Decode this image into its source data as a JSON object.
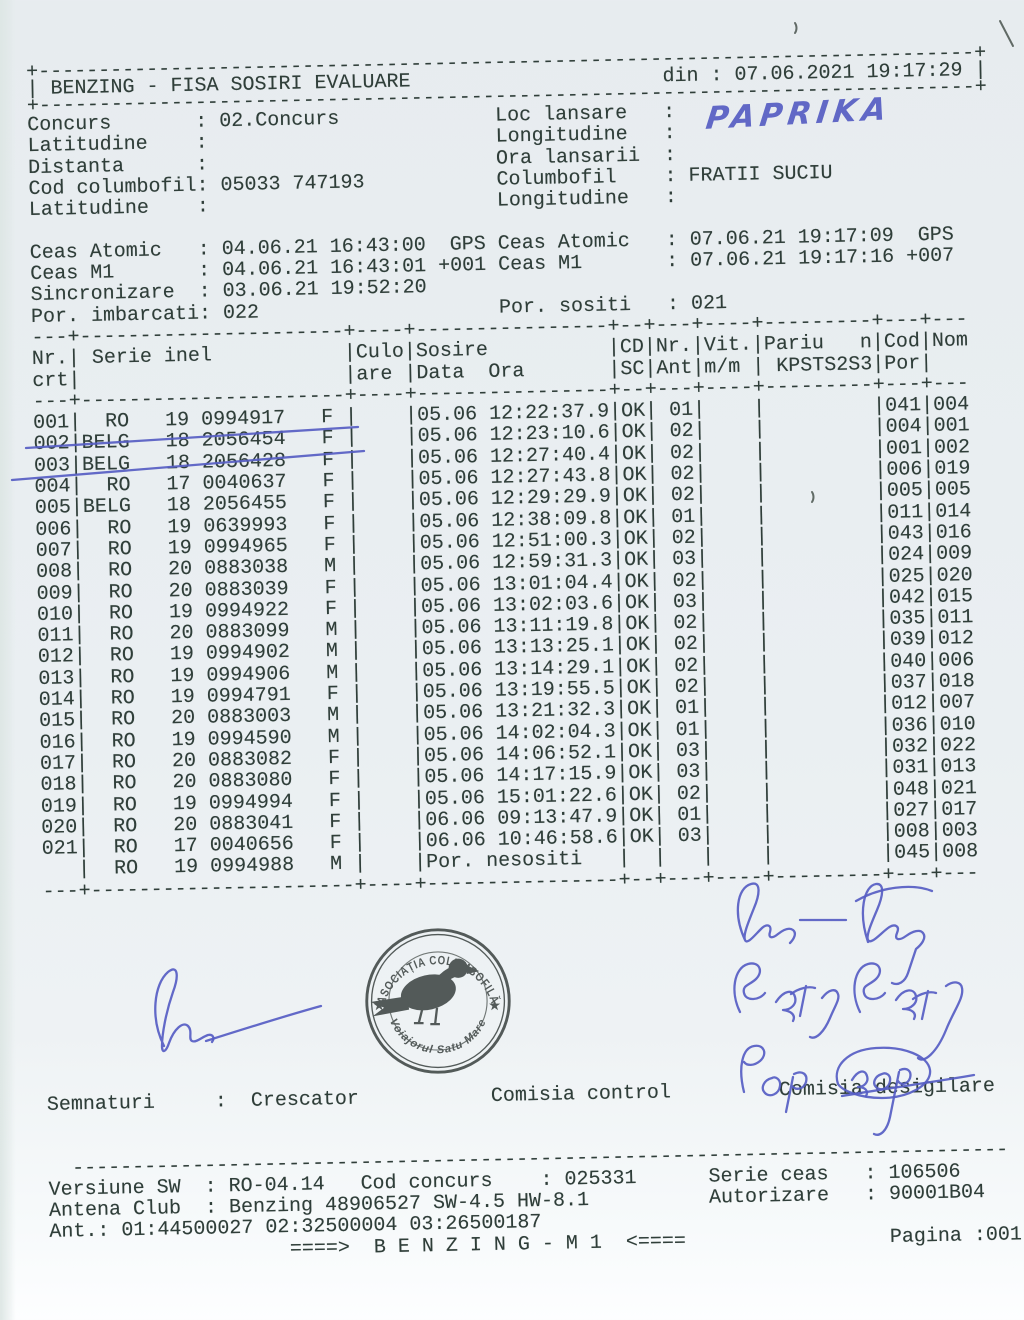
{
  "colors": {
    "ink_blue": "#565dc3",
    "print": "#2f3e39",
    "stamp": "#3e4644",
    "mark": "#49544e"
  },
  "doc": {
    "title": "BENZING - FISA SOSIRI EVALUARE",
    "printed_label": "din :",
    "printed_value": "07.06.2021 19:17:29",
    "info_left": [
      {
        "label": "Concurs",
        "value": "02.Concurs"
      },
      {
        "label": "Latitudine",
        "value": ""
      },
      {
        "label": "Distanta",
        "value": ""
      },
      {
        "label": "Cod columbofil",
        "value": "05033 747193"
      },
      {
        "label": "Latitudine",
        "value": ""
      }
    ],
    "info_right": [
      {
        "label": "Loc lansare",
        "value": ""
      },
      {
        "label": "Longitudine",
        "value": ""
      },
      {
        "label": "Ora lansarii",
        "value": ""
      },
      {
        "label": "Columbofil",
        "value": "FRATII SUCIU"
      },
      {
        "label": "Longitudine",
        "value": ""
      }
    ],
    "clock_left": [
      {
        "label": "Ceas Atomic",
        "value": "04.06.21 16:43:00  GPS"
      },
      {
        "label": "Ceas M1",
        "value": "04.06.21 16:43:01 +001"
      },
      {
        "label": "Sincronizare",
        "value": "03.06.21 19:52:20"
      },
      {
        "label": "Por. imbarcati",
        "value": "022"
      }
    ],
    "clock_right": [
      {
        "label": "Ceas Atomic",
        "value": "07.06.21 19:17:09  GPS"
      },
      {
        "label": "Ceas M1",
        "value": "07.06.21 19:17:16 +007"
      },
      null,
      {
        "label": "Por. sositi",
        "value": "021"
      }
    ]
  },
  "table": {
    "col_headers": {
      "nr": [
        "Nr.",
        "crt"
      ],
      "serie": " Serie inel",
      "culo": [
        "Culo",
        "are "
      ],
      "sosire": [
        "Sosire",
        "Data  Ora"
      ],
      "cd": [
        "CD",
        "SC"
      ],
      "ant": [
        "Nr.",
        "Ant"
      ],
      "vit": [
        "Vit.",
        "m/m "
      ],
      "pariu": [
        "Pariu   n",
        " KPSTS2S3"
      ],
      "cod": [
        "Cod",
        "Por"
      ],
      "nom": "Nom"
    },
    "rows": [
      {
        "nr": "001",
        "country": "RO",
        "year": "19",
        "ring": "0994917",
        "sex": "F",
        "data": "05.06",
        "ora": "12:22:37.9",
        "cd": "OK",
        "ant": "01",
        "cod": "041",
        "nom": "004"
      },
      {
        "nr": "002",
        "country": "BELG",
        "year": "18",
        "ring": "2056454",
        "sex": "F",
        "data": "05.06",
        "ora": "12:23:10.6",
        "cd": "OK",
        "ant": "02",
        "cod": "004",
        "nom": "001"
      },
      {
        "nr": "003",
        "country": "BELG",
        "year": "18",
        "ring": "2056428",
        "sex": "F",
        "data": "05.06",
        "ora": "12:27:40.4",
        "cd": "OK",
        "ant": "02",
        "cod": "001",
        "nom": "002"
      },
      {
        "nr": "004",
        "country": "RO",
        "year": "17",
        "ring": "0040637",
        "sex": "F",
        "data": "05.06",
        "ora": "12:27:43.8",
        "cd": "OK",
        "ant": "02",
        "cod": "006",
        "nom": "019"
      },
      {
        "nr": "005",
        "country": "BELG",
        "year": "18",
        "ring": "2056455",
        "sex": "F",
        "data": "05.06",
        "ora": "12:29:29.9",
        "cd": "OK",
        "ant": "02",
        "cod": "005",
        "nom": "005"
      },
      {
        "nr": "006",
        "country": "RO",
        "year": "19",
        "ring": "0639993",
        "sex": "F",
        "data": "05.06",
        "ora": "12:38:09.8",
        "cd": "OK",
        "ant": "01",
        "cod": "011",
        "nom": "014"
      },
      {
        "nr": "007",
        "country": "RO",
        "year": "19",
        "ring": "0994965",
        "sex": "F",
        "data": "05.06",
        "ora": "12:51:00.3",
        "cd": "OK",
        "ant": "02",
        "cod": "043",
        "nom": "016"
      },
      {
        "nr": "008",
        "country": "RO",
        "year": "20",
        "ring": "0883038",
        "sex": "M",
        "data": "05.06",
        "ora": "12:59:31.3",
        "cd": "OK",
        "ant": "03",
        "cod": "024",
        "nom": "009"
      },
      {
        "nr": "009",
        "country": "RO",
        "year": "20",
        "ring": "0883039",
        "sex": "F",
        "data": "05.06",
        "ora": "13:01:04.4",
        "cd": "OK",
        "ant": "02",
        "cod": "025",
        "nom": "020"
      },
      {
        "nr": "010",
        "country": "RO",
        "year": "19",
        "ring": "0994922",
        "sex": "F",
        "data": "05.06",
        "ora": "13:02:03.6",
        "cd": "OK",
        "ant": "03",
        "cod": "042",
        "nom": "015"
      },
      {
        "nr": "011",
        "country": "RO",
        "year": "20",
        "ring": "0883099",
        "sex": "M",
        "data": "05.06",
        "ora": "13:11:19.8",
        "cd": "OK",
        "ant": "02",
        "cod": "035",
        "nom": "011"
      },
      {
        "nr": "012",
        "country": "RO",
        "year": "19",
        "ring": "0994902",
        "sex": "M",
        "data": "05.06",
        "ora": "13:13:25.1",
        "cd": "OK",
        "ant": "02",
        "cod": "039",
        "nom": "012"
      },
      {
        "nr": "013",
        "country": "RO",
        "year": "19",
        "ring": "0994906",
        "sex": "M",
        "data": "05.06",
        "ora": "13:14:29.1",
        "cd": "OK",
        "ant": "02",
        "cod": "040",
        "nom": "006"
      },
      {
        "nr": "014",
        "country": "RO",
        "year": "19",
        "ring": "0994791",
        "sex": "F",
        "data": "05.06",
        "ora": "13:19:55.5",
        "cd": "OK",
        "ant": "02",
        "cod": "037",
        "nom": "018"
      },
      {
        "nr": "015",
        "country": "RO",
        "year": "20",
        "ring": "0883003",
        "sex": "M",
        "data": "05.06",
        "ora": "13:21:32.3",
        "cd": "OK",
        "ant": "01",
        "cod": "012",
        "nom": "007"
      },
      {
        "nr": "016",
        "country": "RO",
        "year": "19",
        "ring": "0994590",
        "sex": "M",
        "data": "05.06",
        "ora": "14:02:04.3",
        "cd": "OK",
        "ant": "01",
        "cod": "036",
        "nom": "010"
      },
      {
        "nr": "017",
        "country": "RO",
        "year": "20",
        "ring": "0883082",
        "sex": "F",
        "data": "05.06",
        "ora": "14:06:52.1",
        "cd": "OK",
        "ant": "03",
        "cod": "032",
        "nom": "022"
      },
      {
        "nr": "018",
        "country": "RO",
        "year": "20",
        "ring": "0883080",
        "sex": "F",
        "data": "05.06",
        "ora": "14:17:15.9",
        "cd": "OK",
        "ant": "03",
        "cod": "031",
        "nom": "013"
      },
      {
        "nr": "019",
        "country": "RO",
        "year": "19",
        "ring": "0994994",
        "sex": "F",
        "data": "05.06",
        "ora": "15:01:22.6",
        "cd": "OK",
        "ant": "02",
        "cod": "048",
        "nom": "021"
      },
      {
        "nr": "020",
        "country": "RO",
        "year": "20",
        "ring": "0883041",
        "sex": "F",
        "data": "06.06",
        "ora": "09:13:47.9",
        "cd": "OK",
        "ant": "01",
        "cod": "027",
        "nom": "017"
      },
      {
        "nr": "021",
        "country": "RO",
        "year": "17",
        "ring": "0040656",
        "sex": "F",
        "data": "06.06",
        "ora": "10:46:58.6",
        "cd": "OK",
        "ant": "03",
        "cod": "008",
        "nom": "003"
      },
      {
        "nr": "",
        "country": "RO",
        "year": "19",
        "ring": "0994988",
        "sex": "M",
        "note": "Por. nesositi",
        "cd": "",
        "ant": "",
        "cod": "045",
        "nom": "008"
      }
    ]
  },
  "signatures_line": {
    "label": "Semnaturi",
    "crescator": "Crescator",
    "control": "Comisia control",
    "desigilare": "Comisia desigilare"
  },
  "footer": {
    "versiune_label": "Versiune SW",
    "versiune": "RO-04.14",
    "cod_concurs_label": "Cod concurs",
    "cod_concurs": "025331",
    "serie_ceas_label": "Serie ceas",
    "serie_ceas": "106506",
    "antena_label": "Antena Club",
    "antena": "Benzing 48906527 SW-4.5 HW-8.1",
    "autorizare_label": "Autorizare",
    "autorizare": "90001B04",
    "ant_line": "Ant.: 01:44500027 02:32500004 03:26500187",
    "banner": "====>  B E N Z I N G - M 1  <====",
    "pagina_label": "Pagina :",
    "pagina": "001"
  },
  "handwriting": {
    "loc_lansare": "PAPRIKA"
  },
  "stamp": {
    "arc_top": "ASOCIAȚIA COLUMBOFILĂ",
    "arc_bottom": "Voiajorul Satu Mare",
    "star": "★"
  }
}
